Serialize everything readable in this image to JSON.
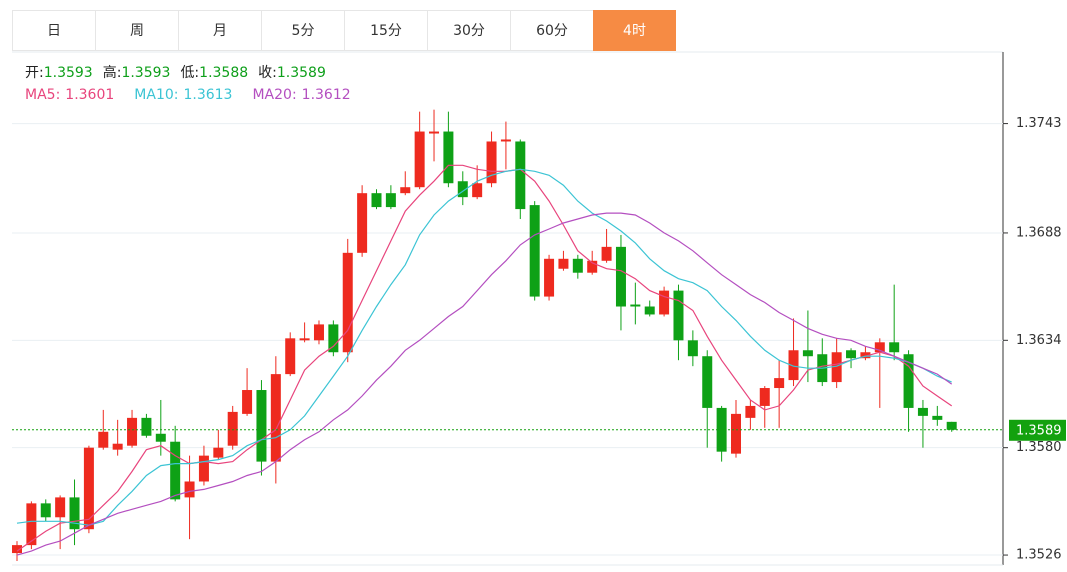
{
  "tabs": [
    "日",
    "周",
    "月",
    "5分",
    "15分",
    "30分",
    "60分",
    "4时"
  ],
  "active_tab": 7,
  "chart_data": {
    "type": "candlestick",
    "ohlc_labels": [
      "开:",
      "高:",
      "低:",
      "收:"
    ],
    "ohlc_color": "#0e9f1a",
    "up_color": "#ee2a1f",
    "down_color": "#0ea116",
    "open": [
      1.3527,
      1.3531,
      1.3552,
      1.3545,
      1.3555,
      1.3539,
      1.358,
      1.3579,
      1.3581,
      1.3595,
      1.3587,
      1.3583,
      1.3555,
      1.3563,
      1.3575,
      1.3581,
      1.3597,
      1.3609,
      1.3573,
      1.3617,
      1.3634,
      1.3634,
      1.3642,
      1.3628,
      1.3678,
      1.3708,
      1.3708,
      1.3708,
      1.3711,
      1.3738,
      1.3739,
      1.3714,
      1.3706,
      1.3713,
      1.3734,
      1.3734,
      1.3702,
      1.3656,
      1.367,
      1.3675,
      1.3668,
      1.3674,
      1.3681,
      1.3652,
      1.3651,
      1.3647,
      1.3659,
      1.3634,
      1.3626,
      1.36,
      1.3577,
      1.3595,
      1.3601,
      1.361,
      1.3614,
      1.3629,
      1.3627,
      1.3613,
      1.3629,
      1.3625,
      1.3628,
      1.3633,
      1.3627,
      1.36,
      1.3596,
      1.3593
    ],
    "high": [
      1.3533,
      1.3553,
      1.3554,
      1.3556,
      1.3564,
      1.3581,
      1.3599,
      1.3594,
      1.3599,
      1.3597,
      1.3604,
      1.3591,
      1.3576,
      1.3581,
      1.3589,
      1.3601,
      1.362,
      1.3614,
      1.3626,
      1.3638,
      1.3643,
      1.3644,
      1.3644,
      1.3685,
      1.3712,
      1.371,
      1.3712,
      1.3719,
      1.3749,
      1.375,
      1.3749,
      1.3719,
      1.3722,
      1.3739,
      1.3744,
      1.3735,
      1.3704,
      1.3677,
      1.3679,
      1.3677,
      1.3679,
      1.369,
      1.3687,
      1.3663,
      1.3654,
      1.3661,
      1.3662,
      1.3639,
      1.3629,
      1.3601,
      1.3604,
      1.3604,
      1.3611,
      1.3624,
      1.3645,
      1.3649,
      1.3635,
      1.3635,
      1.363,
      1.3631,
      1.3635,
      1.3662,
      1.3629,
      1.3604,
      1.3601,
      1.3593
    ],
    "low": [
      1.3523,
      1.3529,
      1.3543,
      1.3529,
      1.3531,
      1.3537,
      1.3579,
      1.3576,
      1.358,
      1.3585,
      1.3576,
      1.3553,
      1.3534,
      1.3561,
      1.3574,
      1.3579,
      1.3596,
      1.3566,
      1.3562,
      1.3616,
      1.3633,
      1.3632,
      1.3626,
      1.3623,
      1.3676,
      1.37,
      1.37,
      1.3707,
      1.371,
      1.3724,
      1.3711,
      1.3702,
      1.3705,
      1.3711,
      1.372,
      1.3695,
      1.3654,
      1.3654,
      1.3669,
      1.3665,
      1.3667,
      1.3673,
      1.3639,
      1.3642,
      1.3646,
      1.3646,
      1.3624,
      1.3621,
      1.358,
      1.3573,
      1.3575,
      1.3589,
      1.359,
      1.359,
      1.3611,
      1.3613,
      1.3611,
      1.361,
      1.362,
      1.3624,
      1.36,
      1.3624,
      1.3588,
      1.358,
      1.3591,
      1.3588
    ],
    "close": [
      1.3531,
      1.3552,
      1.3545,
      1.3555,
      1.3539,
      1.358,
      1.3588,
      1.3582,
      1.3595,
      1.3586,
      1.3583,
      1.3554,
      1.3563,
      1.3576,
      1.358,
      1.3598,
      1.3609,
      1.3573,
      1.3617,
      1.3635,
      1.3635,
      1.3642,
      1.3628,
      1.3678,
      1.3708,
      1.3701,
      1.3701,
      1.3711,
      1.3739,
      1.3739,
      1.3713,
      1.3706,
      1.3713,
      1.3734,
      1.3735,
      1.37,
      1.3656,
      1.3675,
      1.3675,
      1.3668,
      1.3674,
      1.3681,
      1.3651,
      1.3651,
      1.3647,
      1.3659,
      1.3634,
      1.3626,
      1.36,
      1.3578,
      1.3597,
      1.3601,
      1.361,
      1.3615,
      1.3629,
      1.3626,
      1.3613,
      1.3628,
      1.3625,
      1.3628,
      1.3633,
      1.3628,
      1.36,
      1.3596,
      1.3594,
      1.3589
    ],
    "series": [
      {
        "name": "MA5:",
        "color": "#e8457d",
        "values": [
          1.3528,
          1.3533,
          1.3538,
          1.3542,
          1.3543,
          1.3544,
          1.3551,
          1.3558,
          1.3568,
          1.3579,
          1.3581,
          1.3576,
          1.3572,
          1.3573,
          1.3572,
          1.3573,
          1.3579,
          1.3584,
          1.3589,
          1.3604,
          1.3619,
          1.3626,
          1.3631,
          1.3639,
          1.3654,
          1.3669,
          1.3684,
          1.3699,
          1.3707,
          1.3714,
          1.3722,
          1.3722,
          1.372,
          1.3719,
          1.3719,
          1.372,
          1.3714,
          1.3704,
          1.3692,
          1.3679,
          1.3673,
          1.367,
          1.3669,
          1.3665,
          1.3659,
          1.3656,
          1.3654,
          1.3649,
          1.3636,
          1.3624,
          1.3614,
          1.3604,
          1.3599,
          1.3601,
          1.3609,
          1.3619,
          1.3621,
          1.3622,
          1.3624,
          1.3626,
          1.3628,
          1.3626,
          1.3621,
          1.3611,
          1.3606,
          1.3601
        ]
      },
      {
        "name": "MA10:",
        "color": "#3cc4d4",
        "values": [
          1.3542,
          1.3543,
          1.3543,
          1.3543,
          1.3542,
          1.3541,
          1.3543,
          1.3551,
          1.3558,
          1.3566,
          1.3571,
          1.3572,
          1.3572,
          1.3573,
          1.3574,
          1.3576,
          1.3581,
          1.3584,
          1.3585,
          1.3589,
          1.3596,
          1.3606,
          1.3616,
          1.3626,
          1.3639,
          1.3651,
          1.3662,
          1.3672,
          1.3687,
          1.3697,
          1.3704,
          1.3709,
          1.3714,
          1.3717,
          1.3719,
          1.372,
          1.3719,
          1.3717,
          1.3712,
          1.3704,
          1.3698,
          1.3694,
          1.3689,
          1.3683,
          1.3675,
          1.3669,
          1.3665,
          1.3663,
          1.3659,
          1.3651,
          1.3644,
          1.3636,
          1.3629,
          1.3624,
          1.3621,
          1.362,
          1.362,
          1.3621,
          1.3624,
          1.3626,
          1.3626,
          1.3625,
          1.3623,
          1.362,
          1.3616,
          1.3613
        ]
      },
      {
        "name": "MA20:",
        "color": "#b44fc0",
        "values": [
          1.3526,
          1.3528,
          1.3531,
          1.3533,
          1.3537,
          1.3541,
          1.3544,
          1.3547,
          1.3549,
          1.3551,
          1.3553,
          1.3556,
          1.3558,
          1.3559,
          1.3561,
          1.3563,
          1.3566,
          1.3568,
          1.3573,
          1.3579,
          1.3584,
          1.3588,
          1.3594,
          1.3599,
          1.3606,
          1.3614,
          1.3621,
          1.3629,
          1.3634,
          1.364,
          1.3646,
          1.3651,
          1.3659,
          1.3667,
          1.3674,
          1.3682,
          1.3687,
          1.369,
          1.3693,
          1.3695,
          1.3697,
          1.3698,
          1.3698,
          1.3697,
          1.3693,
          1.3688,
          1.3684,
          1.3679,
          1.3673,
          1.3667,
          1.3662,
          1.3657,
          1.3653,
          1.3648,
          1.3644,
          1.364,
          1.3637,
          1.3635,
          1.3634,
          1.3631,
          1.3629,
          1.3626,
          1.3623,
          1.362,
          1.3617,
          1.3612
        ]
      }
    ],
    "last_price": 1.3589,
    "last_price_color": "#13a10e",
    "ylim": [
      1.3521,
      1.3779
    ],
    "yticks": [
      1.3743,
      1.3688,
      1.3634,
      {
        "value": 1.358,
        "label": "1.3580"
      },
      1.3526
    ],
    "grid": true
  }
}
